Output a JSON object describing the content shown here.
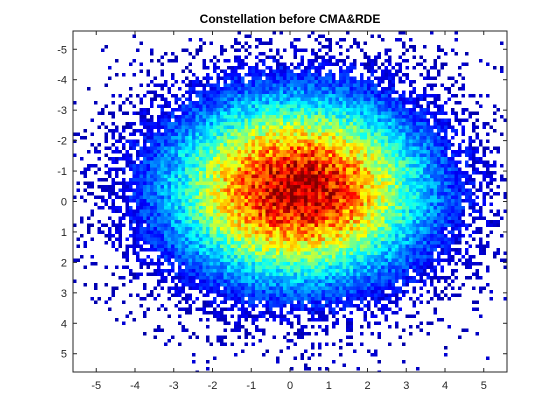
{
  "chart_data": {
    "type": "heatmap",
    "title": "Constellation before CMA&RDE",
    "xlabel": "",
    "ylabel": "",
    "xlim": [
      -5.6,
      5.6
    ],
    "ylim": [
      -5.6,
      5.6
    ],
    "y_reversed": true,
    "x_ticks": [
      -5,
      -4,
      -3,
      -2,
      -1,
      0,
      1,
      2,
      3,
      4,
      5
    ],
    "y_ticks": [
      -5,
      -4,
      -3,
      -2,
      -1,
      0,
      1,
      2,
      3,
      4,
      5
    ],
    "x_tick_labels": [
      "-5",
      "-4",
      "-3",
      "-2",
      "-1",
      "0",
      "1",
      "2",
      "3",
      "4",
      "5"
    ],
    "y_tick_labels": [
      "-5",
      "-4",
      "-3",
      "-2",
      "-1",
      "0",
      "1",
      "2",
      "3",
      "4",
      "5"
    ],
    "grid": false,
    "colormap": "jet",
    "zero_count_color": "#ffffff",
    "distribution": {
      "shape": "2d-gaussian",
      "center": [
        0.2,
        -0.4
      ],
      "spread": [
        2.2,
        2.0
      ],
      "peak_color": "#b40000",
      "edge_color": "#00008f"
    }
  }
}
